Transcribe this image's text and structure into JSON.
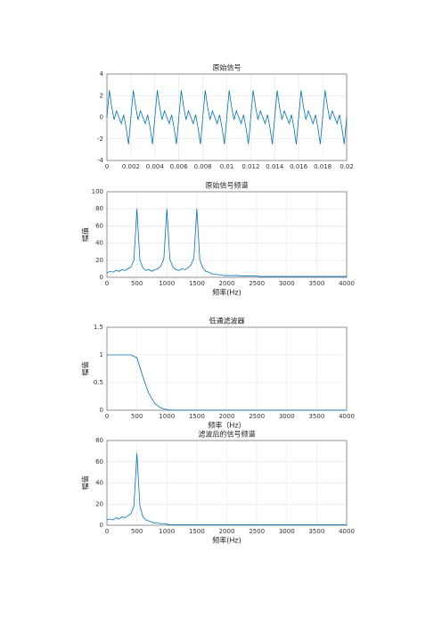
{
  "chart_data": [
    {
      "type": "line",
      "title": "原始信号",
      "color": "#0072bd",
      "grid": true,
      "x": [
        0,
        0.0002,
        0.0004,
        0.0006,
        0.0008,
        0.001,
        0.0012,
        0.0014,
        0.0016,
        0.0018,
        0.002,
        0.0022,
        0.0024,
        0.0026,
        0.0028,
        0.003,
        0.0032,
        0.0034,
        0.0036,
        0.0038,
        0.004,
        0.0042,
        0.0044,
        0.0046,
        0.0048,
        0.005,
        0.0052,
        0.0054,
        0.0056,
        0.0058,
        0.006,
        0.0062,
        0.0064,
        0.0066,
        0.0068,
        0.007,
        0.0072,
        0.0074,
        0.0076,
        0.0078,
        0.008,
        0.0082,
        0.0084,
        0.0086,
        0.0088,
        0.009,
        0.0092,
        0.0094,
        0.0096,
        0.0098,
        0.01,
        0.0102,
        0.0104,
        0.0106,
        0.0108,
        0.011,
        0.0112,
        0.0114,
        0.0116,
        0.0118,
        0.012,
        0.0122,
        0.0124,
        0.0126,
        0.0128,
        0.013,
        0.0132,
        0.0134,
        0.0136,
        0.0138,
        0.014,
        0.0142,
        0.0144,
        0.0146,
        0.0148,
        0.015,
        0.0152,
        0.0154,
        0.0156,
        0.0158,
        0.016,
        0.0162,
        0.0164,
        0.0166,
        0.0168,
        0.017,
        0.0172,
        0.0174,
        0.0176,
        0.0178,
        0.018,
        0.0182,
        0.0184,
        0.0186,
        0.0188,
        0.019,
        0.0192,
        0.0194,
        0.0196,
        0.0198,
        0.02
      ],
      "values": [
        0,
        2.49,
        0.95,
        -0.23,
        0.59,
        0,
        -0.59,
        0.23,
        -0.95,
        -2.49,
        0,
        2.49,
        0.95,
        -0.23,
        0.59,
        0,
        -0.59,
        0.23,
        -0.95,
        -2.49,
        0,
        2.49,
        0.95,
        -0.23,
        0.59,
        0,
        -0.59,
        0.23,
        -0.95,
        -2.49,
        0,
        2.49,
        0.95,
        -0.23,
        0.59,
        0,
        -0.59,
        0.23,
        -0.95,
        -2.49,
        0,
        2.49,
        0.95,
        -0.23,
        0.59,
        0,
        -0.59,
        0.23,
        -0.95,
        -2.49,
        0,
        2.49,
        0.95,
        -0.23,
        0.59,
        0,
        -0.59,
        0.23,
        -0.95,
        -2.49,
        0,
        2.49,
        0.95,
        -0.23,
        0.59,
        0,
        -0.59,
        0.23,
        -0.95,
        -2.49,
        0,
        2.49,
        0.95,
        -0.23,
        0.59,
        0,
        -0.59,
        0.23,
        -0.95,
        -2.49,
        0,
        2.49,
        0.95,
        -0.23,
        0.59,
        0,
        -0.59,
        0.23,
        -0.95,
        -2.49,
        0,
        2.49,
        0.95,
        -0.23,
        0.59,
        0,
        -0.59,
        0.23,
        -0.95,
        -2.49,
        0
      ],
      "xlim": [
        0,
        0.02
      ],
      "xticks": [
        0,
        0.002,
        0.004,
        0.006,
        0.008,
        0.01,
        0.012,
        0.014,
        0.016,
        0.018,
        0.02
      ],
      "ylim": [
        -4,
        4
      ],
      "yticks": [
        -4,
        -2,
        0,
        2,
        4
      ]
    },
    {
      "type": "line",
      "title": "原始信号频谱",
      "x_label": "频率(Hz)",
      "y_label": "幅值",
      "color": "#0072bd",
      "grid": true,
      "x": [
        0,
        50,
        100,
        150,
        200,
        250,
        300,
        350,
        400,
        450,
        500,
        550,
        600,
        650,
        700,
        750,
        800,
        850,
        900,
        950,
        1000,
        1050,
        1100,
        1150,
        1200,
        1250,
        1300,
        1350,
        1400,
        1450,
        1500,
        1550,
        1600,
        1650,
        1700,
        1750,
        1800,
        1850,
        1900,
        1950,
        2000,
        2050,
        2100,
        2150,
        2200,
        2250,
        2300,
        2350,
        2400,
        2450,
        2500,
        2550,
        2600,
        2650,
        2700,
        2750,
        2800,
        2850,
        2900,
        2950,
        3000,
        3050,
        3100,
        3150,
        3200,
        3250,
        3300,
        3350,
        3400,
        3450,
        3500,
        3550,
        3600,
        3650,
        3700,
        3750,
        3800,
        3850,
        3900,
        3950,
        4000
      ],
      "values": [
        5,
        7,
        6,
        8,
        7,
        9,
        8,
        10,
        12,
        20,
        80,
        20,
        11,
        8,
        9,
        7,
        9,
        10,
        13,
        22,
        80,
        21,
        12,
        9,
        8,
        10,
        9,
        11,
        14,
        22,
        80,
        20,
        11,
        7,
        6,
        4,
        4,
        3,
        3,
        2,
        2,
        2,
        2,
        2,
        2,
        1.5,
        1.5,
        1.5,
        1.5,
        1.5,
        1.5,
        1,
        1,
        1,
        1,
        1,
        1,
        1,
        1,
        1,
        1,
        1,
        1,
        1,
        1,
        1,
        1,
        1,
        1,
        1,
        1,
        1,
        1,
        1,
        1,
        1,
        1,
        1,
        1,
        1,
        1
      ],
      "xlim": [
        0,
        4000
      ],
      "xticks": [
        0,
        500,
        1000,
        1500,
        2000,
        2500,
        3000,
        3500,
        4000
      ],
      "ylim": [
        0,
        100
      ],
      "yticks": [
        0,
        20,
        40,
        60,
        80,
        100
      ]
    },
    {
      "type": "line",
      "title": "低通滤波器",
      "x_label": "频率（Hz）",
      "y_label": "幅值",
      "color": "#0072bd",
      "grid": true,
      "x": [
        0,
        100,
        200,
        300,
        400,
        500,
        600,
        700,
        800,
        900,
        1000,
        1100,
        1200,
        1300,
        1400,
        1500,
        1600,
        1700,
        1800,
        1900,
        2000,
        2100,
        2200,
        2300,
        2400,
        2500,
        2600,
        2700,
        2800,
        2900,
        3000,
        3100,
        3200,
        3300,
        3400,
        3500,
        3600,
        3700,
        3800,
        3900,
        4000
      ],
      "values": [
        1,
        1,
        1,
        1,
        1,
        0.95,
        0.6,
        0.3,
        0.12,
        0.04,
        0.01,
        0,
        0,
        0,
        0,
        0,
        0,
        0,
        0,
        0,
        0,
        0,
        0,
        0,
        0,
        0,
        0,
        0,
        0,
        0,
        0,
        0,
        0,
        0,
        0,
        0,
        0,
        0,
        0,
        0,
        0
      ],
      "xlim": [
        0,
        4000
      ],
      "xticks": [
        0,
        500,
        1000,
        1500,
        2000,
        2500,
        3000,
        3500,
        4000
      ],
      "ylim": [
        0,
        1.5
      ],
      "yticks": [
        0,
        0.5,
        1,
        1.5
      ]
    },
    {
      "type": "line",
      "title": "滤波后的信号频谱",
      "x_label": "频率(Hz)",
      "y_label": "幅值",
      "color": "#0072bd",
      "grid": true,
      "x": [
        0,
        50,
        100,
        150,
        200,
        250,
        300,
        350,
        400,
        450,
        500,
        550,
        600,
        650,
        700,
        750,
        800,
        850,
        900,
        950,
        1000,
        1050,
        1100,
        1150,
        1200,
        1250,
        1300,
        1350,
        1400,
        1450,
        1500,
        1550,
        1600,
        1650,
        1700,
        1750,
        1800,
        1850,
        1900,
        1950,
        2000,
        2050,
        2100,
        2150,
        2200,
        2250,
        2300,
        2350,
        2400,
        2450,
        2500,
        2550,
        2600,
        2650,
        2700,
        2750,
        2800,
        2850,
        2900,
        2950,
        3000,
        3050,
        3100,
        3150,
        3200,
        3250,
        3300,
        3350,
        3400,
        3450,
        3500,
        3550,
        3600,
        3650,
        3700,
        3750,
        3800,
        3850,
        3900,
        3950,
        4000
      ],
      "values": [
        5,
        6,
        5,
        7,
        6,
        8,
        7,
        9,
        11,
        18,
        68,
        18,
        8,
        5,
        4,
        3,
        2,
        2,
        1.5,
        1.5,
        1,
        0.5,
        0.5,
        0.5,
        0.5,
        0.5,
        0.5,
        0.5,
        0.5,
        0.5,
        0.5,
        0.5,
        0.5,
        0.5,
        0.5,
        0.5,
        0.5,
        0.5,
        0.5,
        0.5,
        0.5,
        0.5,
        0.5,
        0.5,
        0.5,
        0.5,
        0.5,
        0.5,
        0.5,
        0.5,
        0.5,
        0.5,
        0.5,
        0.5,
        0.5,
        0.5,
        0.5,
        0.5,
        0.5,
        0.5,
        0.5,
        0.5,
        0.5,
        0.5,
        0.5,
        0.5,
        0.5,
        0.5,
        0.5,
        0.5,
        0.5,
        0.5,
        0.5,
        0.5,
        0.5,
        0.5,
        0.5,
        0.5,
        0.5,
        0.5,
        0.5
      ],
      "xlim": [
        0,
        4000
      ],
      "xticks": [
        0,
        500,
        1000,
        1500,
        2000,
        2500,
        3000,
        3500,
        4000
      ],
      "ylim": [
        0,
        80
      ],
      "yticks": [
        0,
        20,
        40,
        60,
        80
      ]
    }
  ]
}
